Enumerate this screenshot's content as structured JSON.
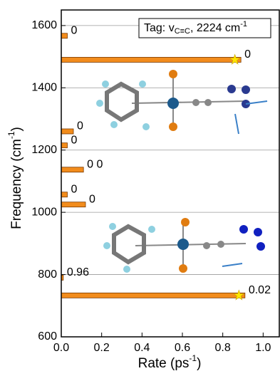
{
  "chart_data": {
    "type": "hbar",
    "x_label": {
      "text": "Rate (ps",
      "sup": "-1",
      "end": ")"
    },
    "y_label": {
      "text": "Frequency (cm",
      "sup": "-1",
      "end": ")"
    },
    "tag": {
      "text": "Tag: v",
      "sub": "C≡C",
      "rest": ", 2224 cm",
      "sup": "-1"
    },
    "y": [
      1567,
      1490,
      1260,
      1215,
      1137,
      1057,
      1025,
      790,
      733
    ],
    "values": [
      0.03,
      0.89,
      0.06,
      0.03,
      0.11,
      0.03,
      0.12,
      0.01,
      0.91
    ],
    "annotations": [
      "0",
      "0",
      "0",
      "0",
      "0 0",
      "0",
      "0",
      "0.96",
      "0.02"
    ],
    "color": "#f28c1c",
    "stars": [
      {
        "x": 0.86,
        "y": 1490
      },
      {
        "x": 0.88,
        "y": 733
      }
    ],
    "star_color": "#ffe600",
    "xlim": [
      0,
      1.08
    ],
    "xticks": [
      {
        "value": 0,
        "label": "0.0"
      },
      0.2,
      0.4,
      0.6,
      0.8,
      {
        "value": 1,
        "label": "1.0"
      }
    ],
    "ylim": [
      600,
      1650
    ],
    "yticks": [
      600,
      800,
      1000,
      1200,
      1400,
      1600
    ],
    "grid": true
  }
}
